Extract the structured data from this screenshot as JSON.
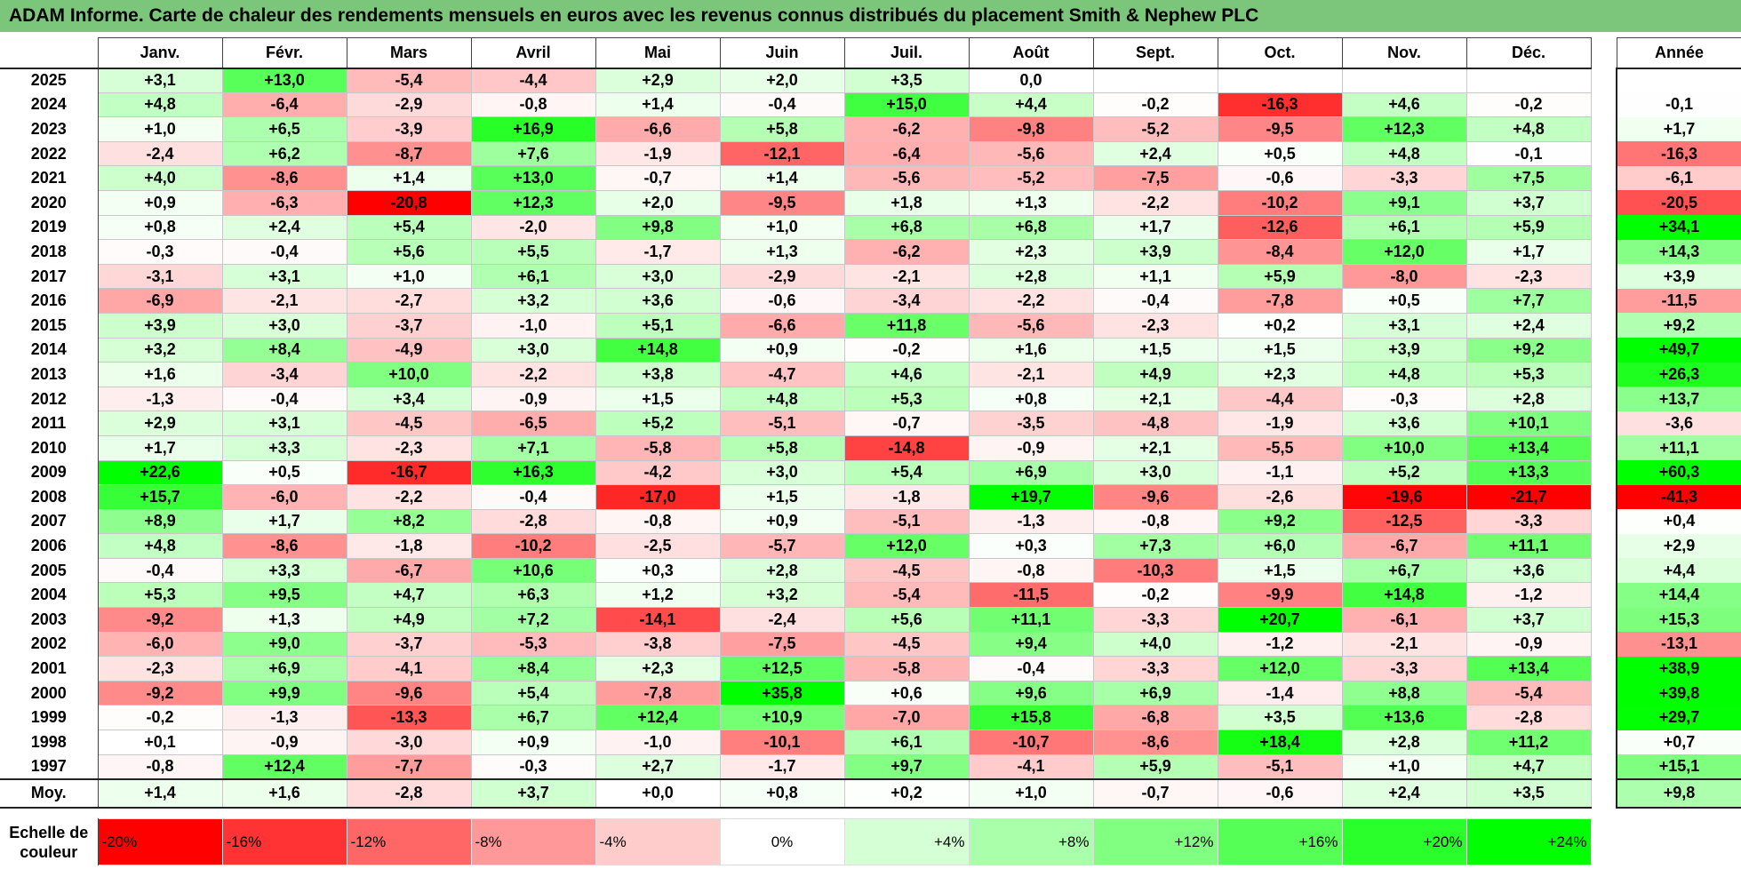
{
  "title": "ADAM Informe. Carte de chaleur des rendements mensuels en euros avec les revenus connus distribués du placement Smith & Nephew PLC",
  "months": [
    "Janv.",
    "Févr.",
    "Mars",
    "Avril",
    "Mai",
    "Juin",
    "Juil.",
    "Août",
    "Sept.",
    "Oct.",
    "Nov.",
    "Déc."
  ],
  "year_header": "Année",
  "avg_label": "Moy.",
  "legend_label": "Echelle de couleur",
  "colors": {
    "neg_max": "#ff0000",
    "neutral": "#ffffff",
    "pos_max": "#00ff00",
    "title_bg": "#7bc67b"
  },
  "chart_data": {
    "type": "heatmap",
    "title": "ADAM Informe. Carte de chaleur des rendements mensuels en euros avec les revenus connus distribués du placement Smith & Nephew PLC",
    "rows": [
      {
        "year": "2025",
        "values": [
          "+3,1",
          "+13,0",
          "-5,4",
          "-4,4",
          "+2,9",
          "+2,0",
          "+3,5",
          "0,0",
          "",
          "",
          "",
          ""
        ],
        "annual": ""
      },
      {
        "year": "2024",
        "values": [
          "+4,8",
          "-6,4",
          "-2,9",
          "-0,8",
          "+1,4",
          "-0,4",
          "+15,0",
          "+4,4",
          "-0,2",
          "-16,3",
          "+4,6",
          "-0,2"
        ],
        "annual": "-0,1"
      },
      {
        "year": "2023",
        "values": [
          "+1,0",
          "+6,5",
          "-3,9",
          "+16,9",
          "-6,6",
          "+5,8",
          "-6,2",
          "-9,8",
          "-5,2",
          "-9,5",
          "+12,3",
          "+4,8"
        ],
        "annual": "+1,7"
      },
      {
        "year": "2022",
        "values": [
          "-2,4",
          "+6,2",
          "-8,7",
          "+7,6",
          "-1,9",
          "-12,1",
          "-6,4",
          "-5,6",
          "+2,4",
          "+0,5",
          "+4,8",
          "-0,1"
        ],
        "annual": "-16,3"
      },
      {
        "year": "2021",
        "values": [
          "+4,0",
          "-8,6",
          "+1,4",
          "+13,0",
          "-0,7",
          "+1,4",
          "-5,6",
          "-5,2",
          "-7,5",
          "-0,6",
          "-3,3",
          "+7,5"
        ],
        "annual": "-6,1"
      },
      {
        "year": "2020",
        "values": [
          "+0,9",
          "-6,3",
          "-20,8",
          "+12,3",
          "+2,0",
          "-9,5",
          "+1,8",
          "+1,3",
          "-2,2",
          "-10,2",
          "+9,1",
          "+3,7"
        ],
        "annual": "-20,5"
      },
      {
        "year": "2019",
        "values": [
          "+0,8",
          "+2,4",
          "+5,4",
          "-2,0",
          "+9,8",
          "+1,0",
          "+6,8",
          "+6,8",
          "+1,7",
          "-12,6",
          "+6,1",
          "+5,9"
        ],
        "annual": "+34,1"
      },
      {
        "year": "2018",
        "values": [
          "-0,3",
          "-0,4",
          "+5,6",
          "+5,5",
          "-1,7",
          "+1,3",
          "-6,2",
          "+2,3",
          "+3,9",
          "-8,4",
          "+12,0",
          "+1,7"
        ],
        "annual": "+14,3"
      },
      {
        "year": "2017",
        "values": [
          "-3,1",
          "+3,1",
          "+1,0",
          "+6,1",
          "+3,0",
          "-2,9",
          "-2,1",
          "+2,8",
          "+1,1",
          "+5,9",
          "-8,0",
          "-2,3"
        ],
        "annual": "+3,9"
      },
      {
        "year": "2016",
        "values": [
          "-6,9",
          "-2,1",
          "-2,7",
          "+3,2",
          "+3,6",
          "-0,6",
          "-3,4",
          "-2,2",
          "-0,4",
          "-7,8",
          "+0,5",
          "+7,7"
        ],
        "annual": "-11,5"
      },
      {
        "year": "2015",
        "values": [
          "+3,9",
          "+3,0",
          "-3,7",
          "-1,0",
          "+5,1",
          "-6,6",
          "+11,8",
          "-5,6",
          "-2,3",
          "+0,2",
          "+3,1",
          "+2,4"
        ],
        "annual": "+9,2"
      },
      {
        "year": "2014",
        "values": [
          "+3,2",
          "+8,4",
          "-4,9",
          "+3,0",
          "+14,8",
          "+0,9",
          "-0,2",
          "+1,6",
          "+1,5",
          "+1,5",
          "+3,9",
          "+9,2"
        ],
        "annual": "+49,7"
      },
      {
        "year": "2013",
        "values": [
          "+1,6",
          "-3,4",
          "+10,0",
          "-2,2",
          "+3,8",
          "-4,7",
          "+4,6",
          "-2,1",
          "+4,9",
          "+2,3",
          "+4,8",
          "+5,3"
        ],
        "annual": "+26,3"
      },
      {
        "year": "2012",
        "values": [
          "-1,3",
          "-0,4",
          "+3,4",
          "-0,9",
          "+1,5",
          "+4,8",
          "+5,3",
          "+0,8",
          "+2,1",
          "-4,4",
          "-0,3",
          "+2,8"
        ],
        "annual": "+13,7"
      },
      {
        "year": "2011",
        "values": [
          "+2,9",
          "+3,1",
          "-4,5",
          "-6,5",
          "+5,2",
          "-5,1",
          "-0,7",
          "-3,5",
          "-4,8",
          "-1,9",
          "+3,6",
          "+10,1"
        ],
        "annual": "-3,6"
      },
      {
        "year": "2010",
        "values": [
          "+1,7",
          "+3,3",
          "-2,3",
          "+7,1",
          "-5,8",
          "+5,8",
          "-14,8",
          "-0,9",
          "+2,1",
          "-5,5",
          "+10,0",
          "+13,4"
        ],
        "annual": "+11,1"
      },
      {
        "year": "2009",
        "values": [
          "+22,6",
          "+0,5",
          "-16,7",
          "+16,3",
          "-4,2",
          "+3,0",
          "+5,4",
          "+6,9",
          "+3,0",
          "-1,1",
          "+5,2",
          "+13,3"
        ],
        "annual": "+60,3"
      },
      {
        "year": "2008",
        "values": [
          "+15,7",
          "-6,0",
          "-2,2",
          "-0,4",
          "-17,0",
          "+1,5",
          "-1,8",
          "+19,7",
          "-9,6",
          "-2,6",
          "-19,6",
          "-21,7"
        ],
        "annual": "-41,3"
      },
      {
        "year": "2007",
        "values": [
          "+8,9",
          "+1,7",
          "+8,2",
          "-2,8",
          "-0,8",
          "+0,9",
          "-5,1",
          "-1,3",
          "-0,8",
          "+9,2",
          "-12,5",
          "-3,3"
        ],
        "annual": "+0,4"
      },
      {
        "year": "2006",
        "values": [
          "+4,8",
          "-8,6",
          "-1,8",
          "-10,2",
          "-2,5",
          "-5,7",
          "+12,0",
          "+0,3",
          "+7,3",
          "+6,0",
          "-6,7",
          "+11,1"
        ],
        "annual": "+2,9"
      },
      {
        "year": "2005",
        "values": [
          "-0,4",
          "+3,3",
          "-6,7",
          "+10,6",
          "+0,3",
          "+2,8",
          "-4,5",
          "-0,8",
          "-10,3",
          "+1,5",
          "+6,7",
          "+3,6"
        ],
        "annual": "+4,4"
      },
      {
        "year": "2004",
        "values": [
          "+5,3",
          "+9,5",
          "+4,7",
          "+6,3",
          "+1,2",
          "+3,2",
          "-5,4",
          "-11,5",
          "-0,2",
          "-9,9",
          "+14,8",
          "-1,2"
        ],
        "annual": "+14,4"
      },
      {
        "year": "2003",
        "values": [
          "-9,2",
          "+1,3",
          "+4,9",
          "+7,2",
          "-14,1",
          "-2,4",
          "+5,6",
          "+11,1",
          "-3,3",
          "+20,7",
          "-6,1",
          "+3,7"
        ],
        "annual": "+15,3"
      },
      {
        "year": "2002",
        "values": [
          "-6,0",
          "+9,0",
          "-3,7",
          "-5,3",
          "-3,8",
          "-7,5",
          "-4,5",
          "+9,4",
          "+4,0",
          "-1,2",
          "-2,1",
          "-0,9"
        ],
        "annual": "-13,1"
      },
      {
        "year": "2001",
        "values": [
          "-2,3",
          "+6,9",
          "-4,1",
          "+8,4",
          "+2,3",
          "+12,5",
          "-5,8",
          "-0,4",
          "-3,3",
          "+12,0",
          "-3,3",
          "+13,4"
        ],
        "annual": "+38,9"
      },
      {
        "year": "2000",
        "values": [
          "-9,2",
          "+9,9",
          "-9,6",
          "+5,4",
          "-7,8",
          "+35,8",
          "+0,6",
          "+9,6",
          "+6,9",
          "-1,4",
          "+8,8",
          "-5,4"
        ],
        "annual": "+39,8"
      },
      {
        "year": "1999",
        "values": [
          "-0,2",
          "-1,3",
          "-13,3",
          "+6,7",
          "+12,4",
          "+10,9",
          "-7,0",
          "+15,8",
          "-6,8",
          "+3,5",
          "+13,6",
          "-2,8"
        ],
        "annual": "+29,7"
      },
      {
        "year": "1998",
        "values": [
          "+0,1",
          "-0,9",
          "-3,0",
          "+0,9",
          "-1,0",
          "-10,1",
          "+6,1",
          "-10,7",
          "-8,6",
          "+18,4",
          "+2,8",
          "+11,2"
        ],
        "annual": "+0,7"
      },
      {
        "year": "1997",
        "values": [
          "-0,8",
          "+12,4",
          "-7,7",
          "-0,3",
          "+2,7",
          "-1,7",
          "+9,7",
          "-4,1",
          "+5,9",
          "-5,1",
          "+1,0",
          "+4,7"
        ],
        "annual": "+15,1"
      }
    ],
    "averages": [
      "+1,4",
      "+1,6",
      "-2,8",
      "+3,7",
      "+0,0",
      "+0,8",
      "+0,2",
      "+1,0",
      "-0,7",
      "-0,6",
      "+2,4",
      "+3,5"
    ],
    "average_annual": "+9,8",
    "scale": [
      "-20%",
      "-16%",
      "-12%",
      "-8%",
      "-4%",
      "0%",
      "+4%",
      "+8%",
      "+12%",
      "+16%",
      "+20%",
      "+24%"
    ]
  }
}
